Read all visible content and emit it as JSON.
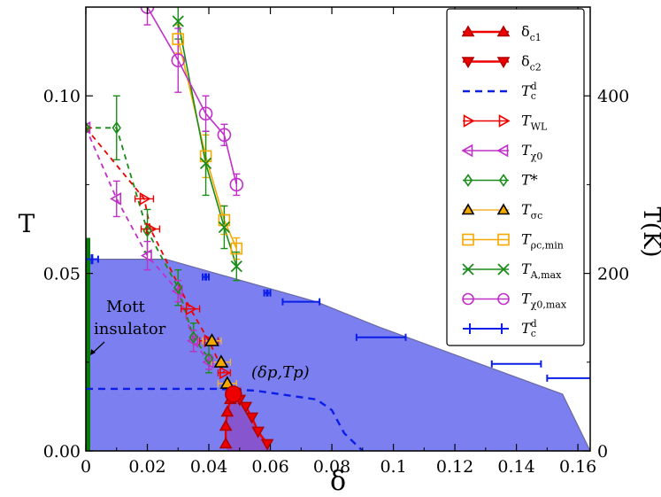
{
  "chart_data": {
    "type": "scatter",
    "title": "",
    "xlabel": "δ",
    "ylabel": "T",
    "y2label": "T(K)",
    "xlim": [
      0,
      0.164
    ],
    "ylim": [
      0,
      0.125
    ],
    "y2lim": [
      0,
      500
    ],
    "x_ticks": [
      0.0,
      0.02,
      0.04,
      0.06,
      0.08,
      0.1,
      0.12,
      0.14,
      0.16
    ],
    "x_tick_labels": [
      "0",
      "0.02",
      "0.04",
      "0.06",
      "0.08",
      "0.1",
      "0.12",
      "0.14",
      "0.16"
    ],
    "y_ticks": [
      0.0,
      0.05,
      0.1
    ],
    "y_tick_labels": [
      "0.00",
      "0.05",
      "0.10"
    ],
    "y2_ticks": [
      0,
      200,
      400
    ],
    "y2_tick_labels": [
      "0",
      "200",
      "400"
    ],
    "colors": {
      "fill": "#7b7ff0",
      "fill_edge": "#6a6aa0",
      "red": "#ee0000",
      "dark_red": "#b00000",
      "purple_fill": "#8a4fc8",
      "blue": "#0a1ee8",
      "magenta": "#c030c8",
      "green": "#1a8c1a",
      "orange": "#f5a800",
      "light_orange": "#f5b030",
      "dark_green": "#0a7a0a"
    },
    "series": [
      {
        "name": "Tc_d_boundary",
        "type": "area",
        "x": [
          0.0,
          0.0,
          0.026,
          0.075,
          0.095,
          0.155,
          0.164,
          0.164
        ],
        "y": [
          0.0,
          0.054,
          0.054,
          0.042,
          0.035,
          0.016,
          0.0,
          0.0
        ]
      },
      {
        "name": "T_c^d",
        "type": "errorbar",
        "x": [
          0.002,
          0.039,
          0.059,
          0.07,
          0.096,
          0.14,
          0.158
        ],
        "y": [
          0.054,
          0.049,
          0.0445,
          0.042,
          0.032,
          0.0245,
          0.0205
        ],
        "xerr": [
          0.002,
          0.001,
          0.001,
          0.006,
          0.008,
          0.008,
          0.008
        ],
        "yerr": [
          0.0014,
          0.001,
          0.001,
          0.0,
          0.0,
          0.0,
          0.0
        ]
      },
      {
        "name": "T_c^d_dashed",
        "type": "line",
        "x": [
          0.0,
          0.042,
          0.055,
          0.075,
          0.08,
          0.084,
          0.09
        ],
        "y": [
          0.0175,
          0.0175,
          0.017,
          0.0145,
          0.0115,
          0.005,
          0.0
        ]
      },
      {
        "name": "delta_c1",
        "x": [
          0.0455,
          0.0455,
          0.046,
          0.047,
          0.048
        ],
        "y": [
          0.002,
          0.007,
          0.011,
          0.0145,
          0.016
        ]
      },
      {
        "name": "delta_c2",
        "x": [
          0.0485,
          0.05,
          0.052,
          0.054,
          0.056,
          0.059
        ],
        "y": [
          0.0165,
          0.0145,
          0.0125,
          0.0095,
          0.0055,
          0.002
        ]
      },
      {
        "name": "T_WL",
        "x": [
          0.0,
          0.019,
          0.021,
          0.034,
          0.04,
          0.045
        ],
        "y": [
          0.091,
          0.071,
          0.0625,
          0.04,
          0.031,
          0.022
        ]
      },
      {
        "name": "T_chi0",
        "x": [
          0.0,
          0.01,
          0.02,
          0.03,
          0.035,
          0.04
        ],
        "y": [
          0.091,
          0.071,
          0.055,
          0.045,
          0.031,
          0.025
        ]
      },
      {
        "name": "T_star",
        "x": [
          0.0,
          0.01,
          0.02,
          0.03,
          0.035,
          0.04
        ],
        "y": [
          0.091,
          0.091,
          0.062,
          0.046,
          0.032,
          0.026
        ]
      },
      {
        "name": "T_sigma_c",
        "x": [
          0.041,
          0.044,
          0.046
        ],
        "y": [
          0.031,
          0.025,
          0.019
        ]
      },
      {
        "name": "T_rho_c_min",
        "x": [
          0.03,
          0.039,
          0.045,
          0.049
        ],
        "y": [
          0.116,
          0.083,
          0.065,
          0.057
        ]
      },
      {
        "name": "T_A_max",
        "x": [
          0.03,
          0.039,
          0.045,
          0.049
        ],
        "y": [
          0.121,
          0.081,
          0.063,
          0.052
        ]
      },
      {
        "name": "T_chi0_max",
        "x": [
          0.02,
          0.03,
          0.039,
          0.045,
          0.049
        ],
        "y": [
          0.125,
          0.11,
          0.095,
          0.089,
          0.075
        ]
      },
      {
        "name": "critical_point",
        "x": [
          0.048
        ],
        "y": [
          0.016
        ]
      }
    ],
    "legend": {
      "placement": "top-right",
      "entries": [
        "δ",
        "δ",
        "T",
        "T",
        "T",
        "T*",
        "T",
        "T",
        "T",
        "T",
        "T"
      ],
      "subscripts": [
        "c1",
        "c2",
        "c",
        "WL",
        "χ0",
        "",
        "σc",
        "ρc,min",
        "A,max",
        "χ0,max",
        "c"
      ],
      "superscripts": [
        "",
        "",
        "d",
        "",
        "",
        "",
        "",
        "",
        "",
        "",
        "d"
      ]
    },
    "annotations": {
      "mott_label_1": "Mott",
      "mott_label_2": "insulator",
      "critical_point_label": "(δp,Tp)"
    }
  }
}
